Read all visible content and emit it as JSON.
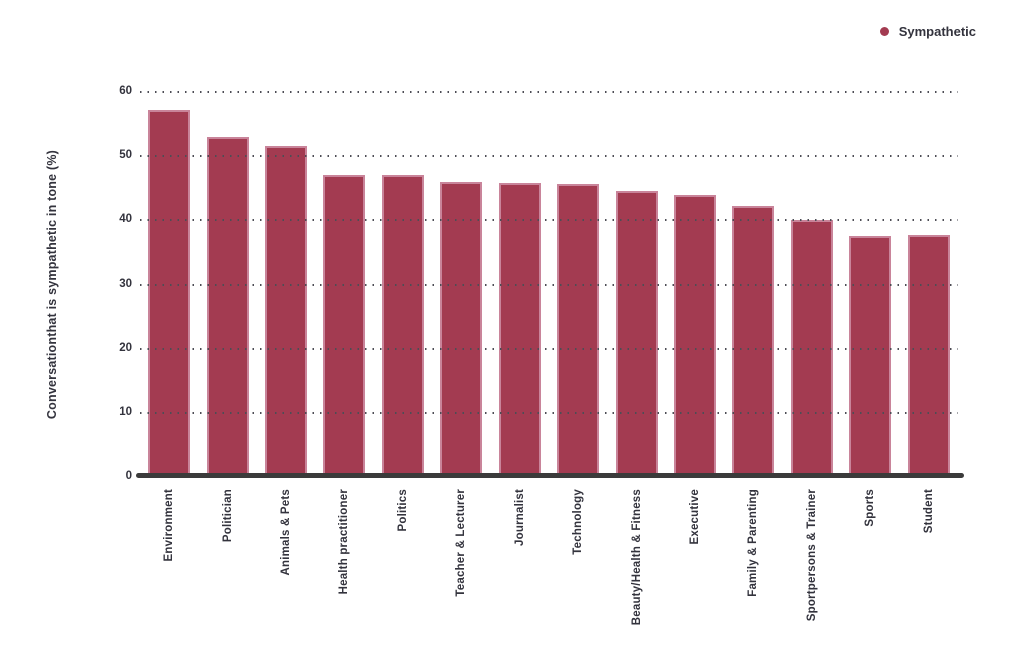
{
  "legend": {
    "label": "Sympathetic"
  },
  "colors": {
    "bar_fill": "#a33b51",
    "bar_border": "#c9849a",
    "text": "#33333d",
    "grid_dot": "#4d4d55",
    "axis_line": "#3b3b3b",
    "background": "#ffffff"
  },
  "chart_data": {
    "type": "bar",
    "title": "",
    "xlabel": "",
    "ylabel": "Conversationthat is sympathetic in tone (%)",
    "ylim": [
      0,
      60
    ],
    "yticks": [
      0,
      10,
      20,
      30,
      40,
      50,
      60
    ],
    "grid": "horizontal dotted gridlines at each y tick, drawn over bars",
    "legend_position": "top-right",
    "series_name": "Sympathetic",
    "categories": [
      "Environment",
      "Politician",
      "Animals & Pets",
      "Health practitioner",
      "Politics",
      "Teacher & Lecturer",
      "Journalist",
      "Technology",
      "Beauty/Health & Fitness",
      "Executive",
      "Family & Parenting",
      "Sportpersons & Trainer",
      "Sports",
      "Student"
    ],
    "values": [
      57.2,
      53.0,
      51.6,
      47.0,
      47.0,
      45.9,
      45.8,
      45.6,
      44.5,
      43.9,
      42.2,
      40.0,
      37.6,
      37.7
    ]
  }
}
